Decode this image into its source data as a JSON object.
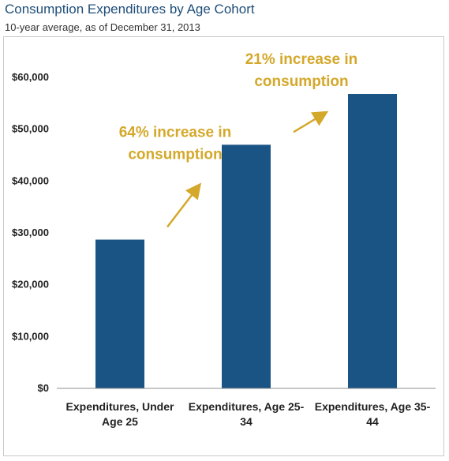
{
  "chart_data": {
    "type": "bar",
    "title": "Consumption Expenditures by Age Cohort",
    "subtitle": "10-year average, as of December 31, 2013",
    "categories": [
      [
        "Expenditures, Under",
        "Age 25"
      ],
      [
        "Expenditures, Age 25-",
        "34"
      ],
      [
        "Expenditures, Age 35-",
        "44"
      ]
    ],
    "values": [
      28700,
      47000,
      56800
    ],
    "ylim": [
      0,
      60000
    ],
    "yticks": [
      "$0",
      "$10,000",
      "$20,000",
      "$30,000",
      "$40,000",
      "$50,000",
      "$60,000"
    ],
    "grid": false,
    "annotations": [
      {
        "lines": [
          "64% increase in",
          "consumption"
        ],
        "from": 0,
        "to": 1
      },
      {
        "lines": [
          "21% increase in",
          "consumption"
        ],
        "from": 1,
        "to": 2
      }
    ],
    "colors": {
      "bar": "#1a5484",
      "annotation": "#d4a82a",
      "axis": "#8c8c8c"
    }
  }
}
